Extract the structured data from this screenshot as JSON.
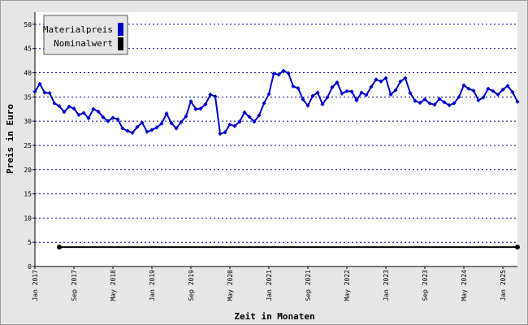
{
  "chart_data": {
    "type": "line",
    "title": "",
    "xlabel": "Zeit in Monaten",
    "ylabel": "Preis in Euro",
    "ylim": [
      0,
      52.5
    ],
    "yticks": [
      0,
      5,
      10,
      15,
      20,
      25,
      30,
      35,
      40,
      45,
      50
    ],
    "grid": true,
    "legend_position": "top-left",
    "x_tick_labels": [
      {
        "label": "Jan 2017",
        "x": "2017-01"
      },
      {
        "label": "Sep 2017",
        "x": "2017-09"
      },
      {
        "label": "May 2018",
        "x": "2018-05"
      },
      {
        "label": "Jan 2019",
        "x": "2019-01"
      },
      {
        "label": "Sep 2019",
        "x": "2019-09"
      },
      {
        "label": "May 2020",
        "x": "2020-05"
      },
      {
        "label": "Jan 2021",
        "x": "2021-01"
      },
      {
        "label": "Sep 2021",
        "x": "2021-09"
      },
      {
        "label": "May 2022",
        "x": "2022-05"
      },
      {
        "label": "Jan 2023",
        "x": "2023-01"
      },
      {
        "label": "Sep 2023",
        "x": "2023-09"
      },
      {
        "label": "May 2024",
        "x": "2024-05"
      },
      {
        "label": "Jan 2025",
        "x": "2025-01"
      }
    ],
    "x": [
      "2017-01",
      "2017-02",
      "2017-03",
      "2017-04",
      "2017-05",
      "2017-06",
      "2017-07",
      "2017-08",
      "2017-09",
      "2017-10",
      "2017-11",
      "2017-12",
      "2018-01",
      "2018-02",
      "2018-03",
      "2018-04",
      "2018-05",
      "2018-06",
      "2018-07",
      "2018-08",
      "2018-09",
      "2018-10",
      "2018-11",
      "2018-12",
      "2019-01",
      "2019-02",
      "2019-03",
      "2019-04",
      "2019-05",
      "2019-06",
      "2019-07",
      "2019-08",
      "2019-09",
      "2019-10",
      "2019-11",
      "2019-12",
      "2020-01",
      "2020-02",
      "2020-03",
      "2020-04",
      "2020-05",
      "2020-06",
      "2020-07",
      "2020-08",
      "2020-09",
      "2020-10",
      "2020-11",
      "2020-12",
      "2021-01",
      "2021-02",
      "2021-03",
      "2021-04",
      "2021-05",
      "2021-06",
      "2021-07",
      "2021-08",
      "2021-09",
      "2021-10",
      "2021-11",
      "2021-12",
      "2022-01",
      "2022-02",
      "2022-03",
      "2022-04",
      "2022-05",
      "2022-06",
      "2022-07",
      "2022-08",
      "2022-09",
      "2022-10",
      "2022-11",
      "2022-12",
      "2023-01",
      "2023-02",
      "2023-03",
      "2023-04",
      "2023-05",
      "2023-06",
      "2023-07",
      "2023-08",
      "2023-09",
      "2023-10",
      "2023-11",
      "2023-12",
      "2024-01",
      "2024-02",
      "2024-03",
      "2024-04",
      "2024-05",
      "2024-06",
      "2024-07",
      "2024-08",
      "2024-09",
      "2024-10",
      "2024-11",
      "2024-12",
      "2025-01",
      "2025-02",
      "2025-03",
      "2025-04"
    ],
    "series": [
      {
        "name": "Materialpreis",
        "color": "#0000cc",
        "values": [
          36.1,
          37.7,
          35.9,
          35.8,
          33.7,
          33.1,
          31.9,
          33.0,
          32.6,
          31.3,
          31.7,
          30.6,
          32.5,
          32.0,
          30.8,
          30.0,
          30.7,
          30.4,
          28.5,
          28.0,
          27.6,
          28.8,
          29.7,
          27.8,
          28.2,
          28.7,
          29.5,
          31.6,
          29.6,
          28.5,
          29.8,
          31.0,
          34.1,
          32.5,
          32.6,
          33.5,
          35.5,
          35.1,
          27.4,
          27.7,
          29.3,
          29.0,
          29.9,
          31.8,
          30.9,
          29.9,
          31.2,
          33.7,
          35.6,
          39.8,
          39.6,
          40.4,
          39.9,
          37.2,
          36.8,
          34.5,
          33.2,
          35.2,
          35.9,
          33.5,
          34.9,
          37.0,
          38.0,
          35.7,
          36.2,
          36.1,
          34.3,
          35.9,
          35.4,
          37.1,
          38.6,
          38.2,
          38.9,
          35.5,
          36.4,
          38.2,
          38.9,
          35.8,
          34.2,
          33.8,
          34.5,
          33.7,
          33.4,
          34.6,
          33.9,
          33.3,
          33.7,
          35.0,
          37.4,
          36.7,
          36.3,
          34.3,
          34.9,
          36.7,
          36.2,
          35.5,
          36.5,
          37.3,
          36.0,
          34.0
        ]
      },
      {
        "name": "Nominalwert",
        "color": "#000000",
        "x": [
          "2017-06",
          "2025-04"
        ],
        "values": [
          4.0,
          4.0
        ]
      }
    ]
  }
}
